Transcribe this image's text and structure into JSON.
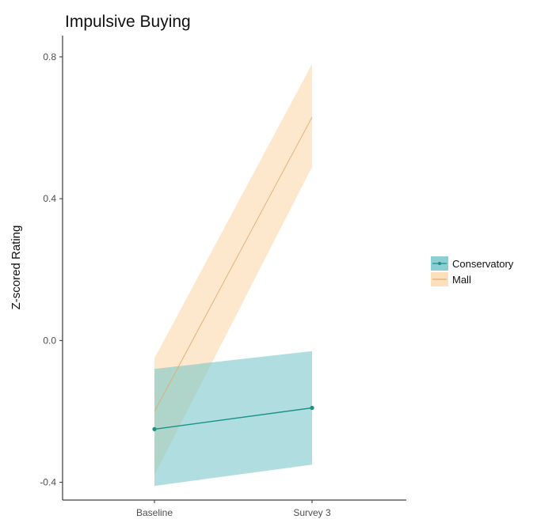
{
  "chart_data": {
    "type": "line",
    "title": "Impulsive Buying",
    "xlabel": "",
    "ylabel": "Z-scored Rating",
    "categories": [
      "Baseline",
      "Survey 3"
    ],
    "ylim": [
      -0.45,
      0.86
    ],
    "yticks": [
      -0.4,
      0.0,
      0.4,
      0.8
    ],
    "ytick_labels": [
      "-0.4",
      "0.0",
      "0.4",
      "0.8"
    ],
    "grid": false,
    "legend_position": "right",
    "series": [
      {
        "name": "Conservatory",
        "values": [
          -0.25,
          -0.19
        ],
        "lower": [
          -0.41,
          -0.35
        ],
        "upper": [
          -0.08,
          -0.03
        ],
        "color": "#1a9187",
        "band_color": "#6fc3c7",
        "band_opacity": 0.55,
        "show_points": true
      },
      {
        "name": "Mall",
        "values": [
          -0.2,
          0.63
        ],
        "lower": [
          -0.38,
          0.49
        ],
        "upper": [
          -0.05,
          0.78
        ],
        "color": "#e2ad6e",
        "band_color": "#fbd8ad",
        "band_opacity": 0.6,
        "show_points": false
      }
    ]
  }
}
